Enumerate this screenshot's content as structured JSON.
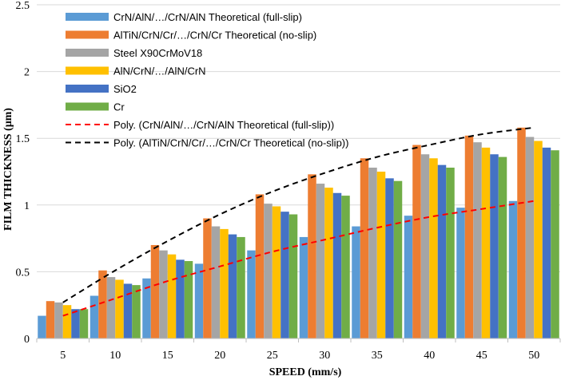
{
  "chart_data": {
    "type": "bar",
    "xlabel": "SPEED (mm/s)",
    "ylabel": "FILM THICKNESS (μm)",
    "ylim": [
      0,
      2.5
    ],
    "yticks": [
      0,
      0.5,
      1,
      1.5,
      2,
      2.5
    ],
    "ytick_labels": [
      "0",
      "0.5",
      "1",
      "1.5",
      "2",
      "2.5"
    ],
    "categories": [
      "5",
      "10",
      "15",
      "20",
      "25",
      "30",
      "35",
      "40",
      "45",
      "50"
    ],
    "legend_position": "top-left",
    "series": [
      {
        "name": "CrN/AlN/…/CrN/AlN Theoretical (full-slip)",
        "color": "#5b9bd5",
        "values": [
          0.17,
          0.32,
          0.45,
          0.56,
          0.66,
          0.76,
          0.84,
          0.92,
          0.98,
          1.03
        ]
      },
      {
        "name": "AlTiN/CrN/Cr/…/CrN/Cr Theoretical (no-slip)",
        "color": "#ed7d31",
        "values": [
          0.28,
          0.51,
          0.7,
          0.9,
          1.08,
          1.23,
          1.35,
          1.45,
          1.52,
          1.58
        ]
      },
      {
        "name": "Steel X90CrMoV18",
        "color": "#a5a5a5",
        "values": [
          0.27,
          0.46,
          0.66,
          0.84,
          1.01,
          1.16,
          1.28,
          1.38,
          1.47,
          1.51
        ]
      },
      {
        "name": "AlN/CrN/…/AlN/CrN",
        "color": "#ffc000",
        "values": [
          0.25,
          0.44,
          0.63,
          0.82,
          0.99,
          1.13,
          1.25,
          1.35,
          1.43,
          1.48
        ]
      },
      {
        "name": "SiO2",
        "color": "#4472c4",
        "values": [
          0.22,
          0.41,
          0.59,
          0.78,
          0.95,
          1.09,
          1.2,
          1.3,
          1.38,
          1.43
        ]
      },
      {
        "name": "Cr",
        "color": "#70ad47",
        "values": [
          0.22,
          0.4,
          0.58,
          0.76,
          0.93,
          1.07,
          1.18,
          1.28,
          1.36,
          1.41
        ]
      }
    ],
    "trendlines": [
      {
        "name": "Poly. (CrN/AlN/…/CrN/AlN Theoretical (full-slip))",
        "color": "#ff0000",
        "style": "dashed",
        "values": [
          0.17,
          0.3,
          0.43,
          0.54,
          0.65,
          0.74,
          0.83,
          0.91,
          0.97,
          1.03
        ]
      },
      {
        "name": "Poly. (AlTiN/CrN/Cr/…/CrN/Cr Theoretical (no-slip))",
        "color": "#000000",
        "style": "dashed",
        "values": [
          0.27,
          0.51,
          0.73,
          0.93,
          1.1,
          1.24,
          1.36,
          1.45,
          1.53,
          1.58
        ]
      }
    ]
  }
}
